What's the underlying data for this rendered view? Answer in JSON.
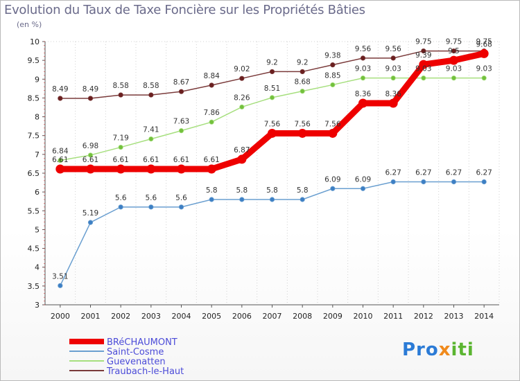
{
  "title": "Evolution du Taux de Taxe Foncière sur les Propriétés Bâties",
  "unit": "(en %)",
  "logo": {
    "part1": "Pro",
    "part2": "x",
    "part3": "iti",
    "colors": [
      "#2b7bd6",
      "#f08a1c",
      "#5bb531"
    ]
  },
  "chart_data": {
    "type": "line",
    "title": "Evolution du Taux de Taxe Foncière sur les Propriétés Bâties",
    "ylabel": "(en %)",
    "xlabel": "",
    "x": [
      2000,
      2001,
      2002,
      2003,
      2004,
      2005,
      2006,
      2007,
      2008,
      2009,
      2010,
      2011,
      2012,
      2013,
      2014
    ],
    "ylim": [
      3,
      10
    ],
    "yticks": [
      3,
      3.5,
      4,
      4.5,
      5,
      5.5,
      6,
      6.5,
      7,
      7.5,
      8,
      8.5,
      9,
      9.5,
      10
    ],
    "ytick_labels": [
      "3",
      "3.5",
      "4",
      "4.5",
      "5",
      "5.5",
      "6",
      "6.5",
      "7",
      "7.5",
      "8",
      "8.5",
      "9",
      "9.5",
      "10"
    ],
    "grid": "vertical",
    "legend_position": "bottom-left",
    "series": [
      {
        "name": "BRéCHAUMONT",
        "color": "#ee0000",
        "bold": true,
        "values": [
          6.61,
          6.61,
          6.61,
          6.61,
          6.61,
          6.61,
          6.87,
          7.56,
          7.56,
          7.56,
          8.36,
          8.36,
          9.39,
          9.5,
          9.68
        ],
        "labels": [
          "6.61",
          "6.61",
          "6.61",
          "6.61",
          "6.61",
          "6.61",
          "6.87",
          "7.56",
          "7.56",
          "7.56",
          "8.36",
          "8.36",
          "9.39",
          "9.5",
          "9.68"
        ]
      },
      {
        "name": "Saint-Cosme",
        "color": "#6a9fd0",
        "marker": "#3d7fc4",
        "values": [
          3.51,
          5.19,
          5.6,
          5.6,
          5.6,
          5.8,
          5.8,
          5.8,
          5.8,
          6.09,
          6.09,
          6.27,
          6.27,
          6.27,
          6.27
        ],
        "labels": [
          "3.51",
          "5.19",
          "5.6",
          "5.6",
          "5.6",
          "5.8",
          "5.8",
          "5.8",
          "5.8",
          "6.09",
          "6.09",
          "6.27",
          "6.27",
          "6.27",
          "6.27"
        ]
      },
      {
        "name": "Guevenatten",
        "color": "#a6df7e",
        "marker": "#73c03d",
        "values": [
          6.84,
          6.98,
          7.19,
          7.41,
          7.63,
          7.86,
          8.26,
          8.51,
          8.68,
          8.85,
          9.03,
          9.03,
          9.03,
          9.03,
          9.03
        ],
        "labels": [
          "6.84",
          "6.98",
          "7.19",
          "7.41",
          "7.63",
          "7.86",
          "8.26",
          "8.51",
          "8.68",
          "8.85",
          "9.03",
          "9.03",
          "9.03",
          "9.03",
          "9.03"
        ]
      },
      {
        "name": "Traubach-le-Haut",
        "color": "#7a3a3a",
        "marker": "#6a1f1f",
        "values": [
          8.49,
          8.49,
          8.58,
          8.58,
          8.67,
          8.84,
          9.02,
          9.2,
          9.2,
          9.38,
          9.56,
          9.56,
          9.75,
          9.75,
          9.75
        ],
        "labels": [
          "8.49",
          "8.49",
          "8.58",
          "8.58",
          "8.67",
          "8.84",
          "9.02",
          "9.2",
          "9.2",
          "9.38",
          "9.56",
          "9.56",
          "9.75",
          "9.75",
          "9.75"
        ]
      }
    ]
  }
}
